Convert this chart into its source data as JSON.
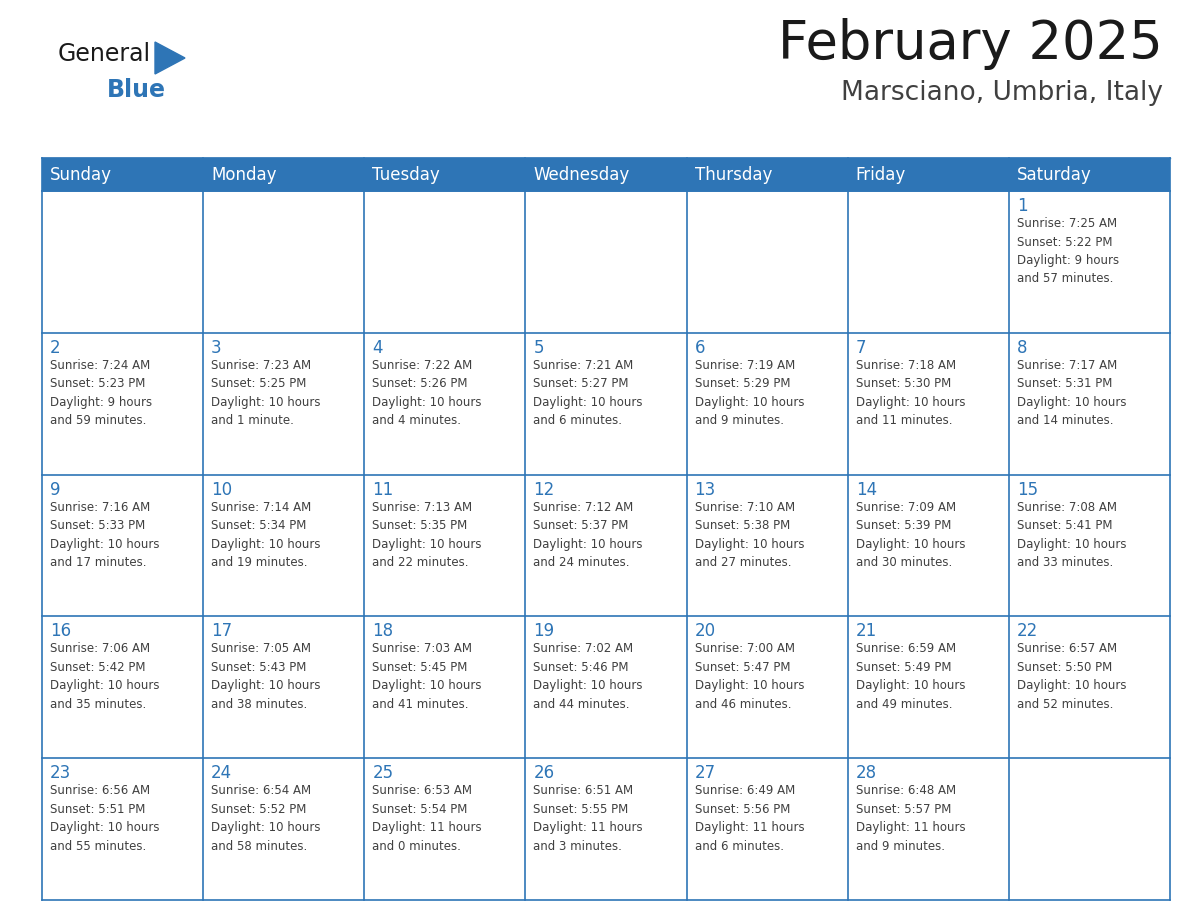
{
  "title": "February 2025",
  "subtitle": "Marsciano, Umbria, Italy",
  "header_bg": "#2E75B6",
  "header_text_color": "#FFFFFF",
  "cell_bg": "#FFFFFF",
  "border_color": "#2E75B6",
  "day_number_color": "#2E75B6",
  "cell_text_color": "#404040",
  "days_of_week": [
    "Sunday",
    "Monday",
    "Tuesday",
    "Wednesday",
    "Thursday",
    "Friday",
    "Saturday"
  ],
  "calendar_data": [
    [
      "",
      "",
      "",
      "",
      "",
      "",
      "1\nSunrise: 7:25 AM\nSunset: 5:22 PM\nDaylight: 9 hours\nand 57 minutes."
    ],
    [
      "2\nSunrise: 7:24 AM\nSunset: 5:23 PM\nDaylight: 9 hours\nand 59 minutes.",
      "3\nSunrise: 7:23 AM\nSunset: 5:25 PM\nDaylight: 10 hours\nand 1 minute.",
      "4\nSunrise: 7:22 AM\nSunset: 5:26 PM\nDaylight: 10 hours\nand 4 minutes.",
      "5\nSunrise: 7:21 AM\nSunset: 5:27 PM\nDaylight: 10 hours\nand 6 minutes.",
      "6\nSunrise: 7:19 AM\nSunset: 5:29 PM\nDaylight: 10 hours\nand 9 minutes.",
      "7\nSunrise: 7:18 AM\nSunset: 5:30 PM\nDaylight: 10 hours\nand 11 minutes.",
      "8\nSunrise: 7:17 AM\nSunset: 5:31 PM\nDaylight: 10 hours\nand 14 minutes."
    ],
    [
      "9\nSunrise: 7:16 AM\nSunset: 5:33 PM\nDaylight: 10 hours\nand 17 minutes.",
      "10\nSunrise: 7:14 AM\nSunset: 5:34 PM\nDaylight: 10 hours\nand 19 minutes.",
      "11\nSunrise: 7:13 AM\nSunset: 5:35 PM\nDaylight: 10 hours\nand 22 minutes.",
      "12\nSunrise: 7:12 AM\nSunset: 5:37 PM\nDaylight: 10 hours\nand 24 minutes.",
      "13\nSunrise: 7:10 AM\nSunset: 5:38 PM\nDaylight: 10 hours\nand 27 minutes.",
      "14\nSunrise: 7:09 AM\nSunset: 5:39 PM\nDaylight: 10 hours\nand 30 minutes.",
      "15\nSunrise: 7:08 AM\nSunset: 5:41 PM\nDaylight: 10 hours\nand 33 minutes."
    ],
    [
      "16\nSunrise: 7:06 AM\nSunset: 5:42 PM\nDaylight: 10 hours\nand 35 minutes.",
      "17\nSunrise: 7:05 AM\nSunset: 5:43 PM\nDaylight: 10 hours\nand 38 minutes.",
      "18\nSunrise: 7:03 AM\nSunset: 5:45 PM\nDaylight: 10 hours\nand 41 minutes.",
      "19\nSunrise: 7:02 AM\nSunset: 5:46 PM\nDaylight: 10 hours\nand 44 minutes.",
      "20\nSunrise: 7:00 AM\nSunset: 5:47 PM\nDaylight: 10 hours\nand 46 minutes.",
      "21\nSunrise: 6:59 AM\nSunset: 5:49 PM\nDaylight: 10 hours\nand 49 minutes.",
      "22\nSunrise: 6:57 AM\nSunset: 5:50 PM\nDaylight: 10 hours\nand 52 minutes."
    ],
    [
      "23\nSunrise: 6:56 AM\nSunset: 5:51 PM\nDaylight: 10 hours\nand 55 minutes.",
      "24\nSunrise: 6:54 AM\nSunset: 5:52 PM\nDaylight: 10 hours\nand 58 minutes.",
      "25\nSunrise: 6:53 AM\nSunset: 5:54 PM\nDaylight: 11 hours\nand 0 minutes.",
      "26\nSunrise: 6:51 AM\nSunset: 5:55 PM\nDaylight: 11 hours\nand 3 minutes.",
      "27\nSunrise: 6:49 AM\nSunset: 5:56 PM\nDaylight: 11 hours\nand 6 minutes.",
      "28\nSunrise: 6:48 AM\nSunset: 5:57 PM\nDaylight: 11 hours\nand 9 minutes.",
      ""
    ]
  ],
  "logo_general_color": "#1a1a1a",
  "logo_blue_color": "#2E75B6",
  "logo_triangle_color": "#2E75B6",
  "title_color": "#1a1a1a",
  "subtitle_color": "#404040"
}
